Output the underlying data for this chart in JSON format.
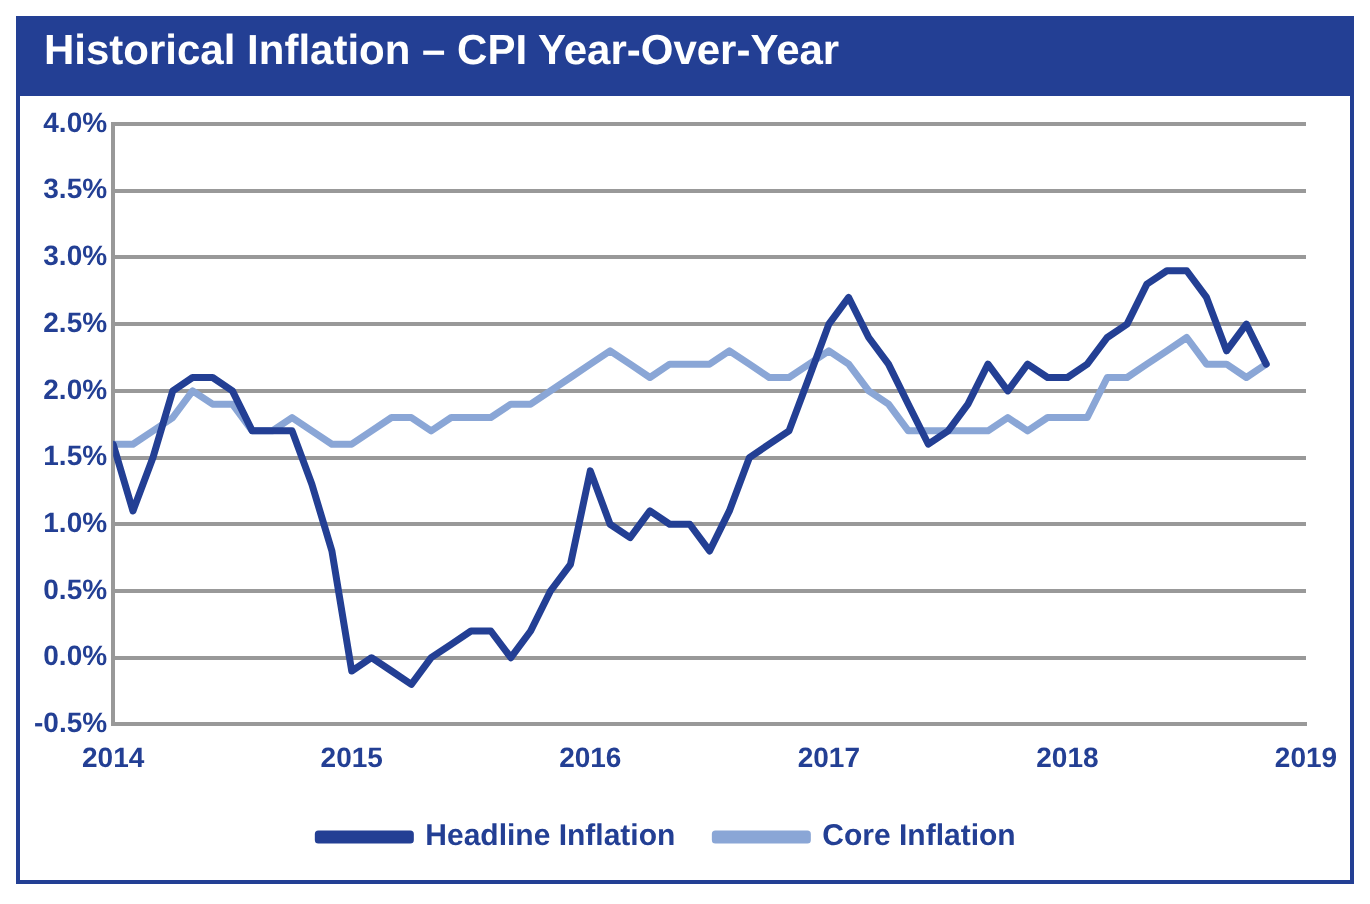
{
  "chart_data": {
    "type": "line",
    "title": "Historical Inflation – CPI Year-Over-Year",
    "x": [
      2014,
      2014.083,
      2014.167,
      2014.25,
      2014.333,
      2014.417,
      2014.5,
      2014.583,
      2014.667,
      2014.75,
      2014.833,
      2014.917,
      2015,
      2015.083,
      2015.167,
      2015.25,
      2015.333,
      2015.417,
      2015.5,
      2015.583,
      2015.667,
      2015.75,
      2015.833,
      2015.917,
      2016,
      2016.083,
      2016.167,
      2016.25,
      2016.333,
      2016.417,
      2016.5,
      2016.583,
      2016.667,
      2016.75,
      2016.833,
      2016.917,
      2017,
      2017.083,
      2017.167,
      2017.25,
      2017.333,
      2017.417,
      2017.5,
      2017.583,
      2017.667,
      2017.75,
      2017.833,
      2017.917,
      2018,
      2018.083,
      2018.167,
      2018.25,
      2018.333,
      2018.417,
      2018.5,
      2018.583,
      2018.667,
      2018.75,
      2018.833
    ],
    "series": [
      {
        "name": "Headline Inflation",
        "color": "#233f94",
        "values": [
          1.6,
          1.1,
          1.5,
          2.0,
          2.1,
          2.1,
          2.0,
          1.7,
          1.7,
          1.7,
          1.3,
          0.8,
          -0.1,
          0.0,
          -0.1,
          -0.2,
          0.0,
          0.1,
          0.2,
          0.2,
          0.0,
          0.2,
          0.5,
          0.7,
          1.4,
          1.0,
          0.9,
          1.1,
          1.0,
          1.0,
          0.8,
          1.1,
          1.5,
          1.6,
          1.7,
          2.1,
          2.5,
          2.7,
          2.4,
          2.2,
          1.9,
          1.6,
          1.7,
          1.9,
          2.2,
          2.0,
          2.2,
          2.1,
          2.1,
          2.2,
          2.4,
          2.5,
          2.8,
          2.9,
          2.9,
          2.7,
          2.3,
          2.5,
          2.2
        ]
      },
      {
        "name": "Core Inflation",
        "color": "#8aa6d6",
        "values": [
          1.6,
          1.6,
          1.7,
          1.8,
          2.0,
          1.9,
          1.9,
          1.7,
          1.7,
          1.8,
          1.7,
          1.6,
          1.6,
          1.7,
          1.8,
          1.8,
          1.7,
          1.8,
          1.8,
          1.8,
          1.9,
          1.9,
          2.0,
          2.1,
          2.2,
          2.3,
          2.2,
          2.1,
          2.2,
          2.2,
          2.2,
          2.3,
          2.2,
          2.1,
          2.1,
          2.2,
          2.3,
          2.2,
          2.0,
          1.9,
          1.7,
          1.7,
          1.7,
          1.7,
          1.7,
          1.8,
          1.7,
          1.8,
          1.8,
          1.8,
          2.1,
          2.1,
          2.2,
          2.3,
          2.4,
          2.2,
          2.2,
          2.1,
          2.2
        ]
      }
    ],
    "xlim": [
      2014,
      2019
    ],
    "xticks": [
      2014,
      2015,
      2016,
      2017,
      2018,
      2019
    ],
    "ylim": [
      -0.5,
      4
    ],
    "yticks": [
      {
        "value": -0.5,
        "label": "-0.5%"
      },
      {
        "value": 0,
        "label": "0.0%"
      },
      {
        "value": 0.5,
        "label": "0.5%"
      },
      {
        "value": 1,
        "label": "1.0%"
      },
      {
        "value": 1.5,
        "label": "1.5%"
      },
      {
        "value": 2,
        "label": "2.0%"
      },
      {
        "value": 2.5,
        "label": "2.5%"
      },
      {
        "value": 3,
        "label": "3.0%"
      },
      {
        "value": 3.5,
        "label": "3.5%"
      },
      {
        "value": 4,
        "label": "4.0%"
      }
    ],
    "grid": "y",
    "legend": "bottom",
    "marker": "none",
    "line_style": "solid"
  }
}
